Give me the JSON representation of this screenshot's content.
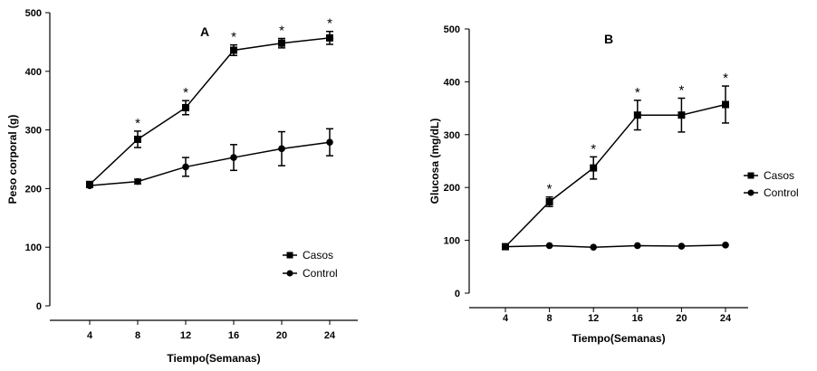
{
  "chart_data": [
    {
      "type": "line",
      "title": "A",
      "xlabel": "Tiempo(Semanas)",
      "ylabel": "Peso corporal (g)",
      "categories": [
        "4",
        "8",
        "12",
        "16",
        "20",
        "24"
      ],
      "yticks": [
        "0",
        "100",
        "200",
        "300",
        "400",
        "500"
      ],
      "ylim": [
        0,
        500
      ],
      "significance_marker": "*",
      "series": [
        {
          "name": "Casos",
          "marker": "square",
          "values": [
            207,
            284,
            338,
            436,
            448,
            457
          ],
          "errors": [
            5,
            14,
            12,
            9,
            8,
            11
          ],
          "significant": [
            false,
            true,
            true,
            true,
            true,
            true
          ]
        },
        {
          "name": "Control",
          "marker": "circle",
          "values": [
            205,
            212,
            237,
            253,
            268,
            279
          ],
          "errors": [
            3,
            4,
            16,
            22,
            29,
            23
          ],
          "significant": [
            false,
            false,
            false,
            false,
            false,
            false
          ]
        }
      ]
    },
    {
      "type": "line",
      "title": "B",
      "xlabel": "Tiempo(Semanas)",
      "ylabel": "Glucosa (mg/dL)",
      "categories": [
        "4",
        "8",
        "12",
        "16",
        "20",
        "24"
      ],
      "yticks": [
        "0",
        "100",
        "200",
        "300",
        "400",
        "500"
      ],
      "ylim": [
        0,
        500
      ],
      "significance_marker": "*",
      "series": [
        {
          "name": "Casos",
          "marker": "square",
          "values": [
            88,
            173,
            237,
            337,
            337,
            357
          ],
          "errors": [
            2,
            9,
            21,
            28,
            32,
            35
          ],
          "significant": [
            false,
            true,
            true,
            true,
            true,
            true
          ]
        },
        {
          "name": "Control",
          "marker": "circle",
          "values": [
            88,
            90,
            87,
            90,
            89,
            91
          ],
          "errors": [
            1,
            1,
            1,
            1,
            1,
            1
          ],
          "significant": [
            false,
            false,
            false,
            false,
            false,
            false
          ]
        }
      ]
    }
  ]
}
